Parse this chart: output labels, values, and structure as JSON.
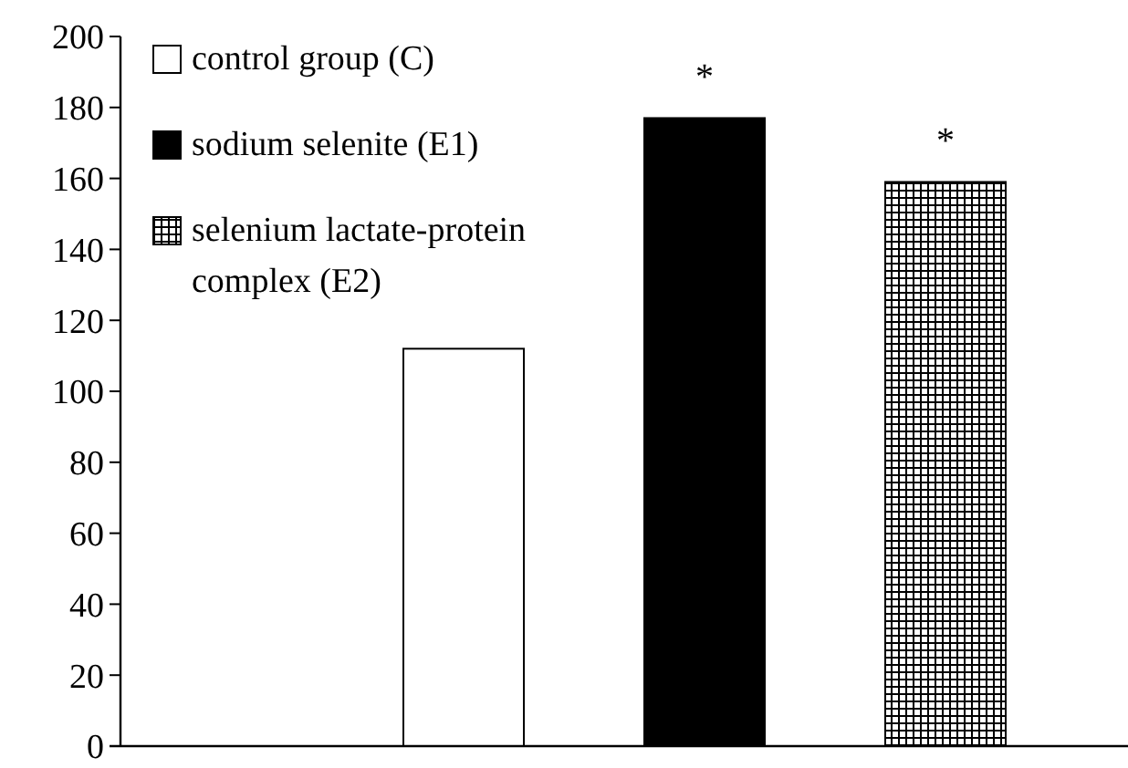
{
  "chart_data": {
    "type": "bar",
    "categories": [
      null
    ],
    "series": [
      {
        "name": "control group (C)",
        "color": "#ffffff",
        "values": [
          112
        ]
      },
      {
        "name": "sodium selenite (E1)",
        "color": "#000000",
        "values": [
          177
        ]
      },
      {
        "name": "selenium lactate-protein complex (E2)",
        "color": "#000000",
        "values": [
          159
        ]
      }
    ],
    "ylim": [
      0,
      200
    ],
    "yticks": [
      0,
      20,
      40,
      60,
      80,
      100,
      120,
      140,
      160,
      180,
      200
    ],
    "grid": false,
    "legend": "top left",
    "annotations": [
      "*",
      "*"
    ]
  }
}
